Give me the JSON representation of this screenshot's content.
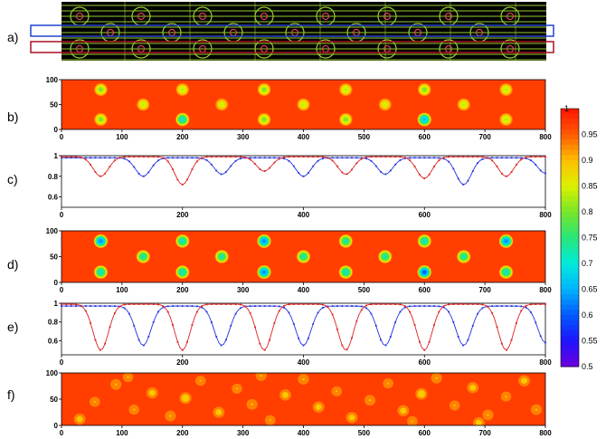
{
  "panel_labels": [
    "a)",
    "b)",
    "c)",
    "d)",
    "e)",
    "f)"
  ],
  "chart_data": [
    {
      "panel": "b)",
      "type": "heatmap",
      "xlim": [
        0,
        800
      ],
      "ylim": [
        0,
        100
      ],
      "xticks": [
        "0",
        "100",
        "200",
        "300",
        "400",
        "500",
        "600",
        "700",
        "800"
      ],
      "yticks": [
        "0",
        "50",
        "100"
      ],
      "background_value": 0.97,
      "spots": [
        {
          "x": 65,
          "y": 80,
          "v": 0.8
        },
        {
          "x": 200,
          "y": 80,
          "v": 0.82
        },
        {
          "x": 335,
          "y": 80,
          "v": 0.8
        },
        {
          "x": 470,
          "y": 80,
          "v": 0.82
        },
        {
          "x": 600,
          "y": 80,
          "v": 0.8
        },
        {
          "x": 735,
          "y": 80,
          "v": 0.82
        },
        {
          "x": 135,
          "y": 50,
          "v": 0.83
        },
        {
          "x": 265,
          "y": 50,
          "v": 0.84
        },
        {
          "x": 400,
          "y": 50,
          "v": 0.83
        },
        {
          "x": 535,
          "y": 50,
          "v": 0.84
        },
        {
          "x": 665,
          "y": 50,
          "v": 0.83
        },
        {
          "x": 65,
          "y": 20,
          "v": 0.8
        },
        {
          "x": 200,
          "y": 20,
          "v": 0.7
        },
        {
          "x": 335,
          "y": 20,
          "v": 0.8
        },
        {
          "x": 470,
          "y": 20,
          "v": 0.8
        },
        {
          "x": 600,
          "y": 20,
          "v": 0.65
        },
        {
          "x": 735,
          "y": 20,
          "v": 0.82
        }
      ]
    },
    {
      "panel": "c)",
      "type": "line",
      "xlim": [
        0,
        800
      ],
      "ylim": [
        0.5,
        1.0
      ],
      "xticks": [
        "0",
        "200",
        "400",
        "600",
        "800"
      ],
      "yticks": [
        "0.6",
        "0.8",
        "1"
      ],
      "series": [
        {
          "color": "#2233dd",
          "baseline": 0.98,
          "dips": [
            {
              "x": 135,
              "min": 0.8
            },
            {
              "x": 265,
              "min": 0.82
            },
            {
              "x": 400,
              "min": 0.8
            },
            {
              "x": 535,
              "min": 0.82
            },
            {
              "x": 665,
              "min": 0.72
            },
            {
              "x": 800,
              "min": 0.83
            }
          ]
        },
        {
          "color": "#dd2222",
          "baseline": 0.99,
          "dips": [
            {
              "x": 65,
              "min": 0.8
            },
            {
              "x": 200,
              "min": 0.72
            },
            {
              "x": 335,
              "min": 0.85
            },
            {
              "x": 470,
              "min": 0.82
            },
            {
              "x": 600,
              "min": 0.78
            },
            {
              "x": 735,
              "min": 0.8
            }
          ]
        }
      ]
    },
    {
      "panel": "d)",
      "type": "heatmap",
      "xlim": [
        0,
        800
      ],
      "ylim": [
        0,
        100
      ],
      "xticks": [
        "0",
        "100",
        "200",
        "300",
        "400",
        "500",
        "600",
        "700",
        "800"
      ],
      "yticks": [
        "0",
        "50",
        "100"
      ],
      "background_value": 0.97,
      "spots": [
        {
          "x": 65,
          "y": 80,
          "v": 0.62
        },
        {
          "x": 200,
          "y": 80,
          "v": 0.7
        },
        {
          "x": 335,
          "y": 80,
          "v": 0.62
        },
        {
          "x": 470,
          "y": 80,
          "v": 0.72
        },
        {
          "x": 600,
          "y": 80,
          "v": 0.7
        },
        {
          "x": 735,
          "y": 80,
          "v": 0.62
        },
        {
          "x": 135,
          "y": 50,
          "v": 0.72
        },
        {
          "x": 265,
          "y": 50,
          "v": 0.72
        },
        {
          "x": 400,
          "y": 50,
          "v": 0.72
        },
        {
          "x": 535,
          "y": 50,
          "v": 0.72
        },
        {
          "x": 665,
          "y": 50,
          "v": 0.72
        },
        {
          "x": 65,
          "y": 20,
          "v": 0.7
        },
        {
          "x": 200,
          "y": 20,
          "v": 0.7
        },
        {
          "x": 335,
          "y": 20,
          "v": 0.62
        },
        {
          "x": 470,
          "y": 20,
          "v": 0.7
        },
        {
          "x": 600,
          "y": 20,
          "v": 0.6
        },
        {
          "x": 735,
          "y": 20,
          "v": 0.7
        }
      ]
    },
    {
      "panel": "e)",
      "type": "line",
      "xlim": [
        0,
        800
      ],
      "ylim": [
        0.45,
        1.0
      ],
      "xticks": [
        "0",
        "200",
        "400",
        "600",
        "800"
      ],
      "yticks": [
        "0.6",
        "0.8",
        "1"
      ],
      "series": [
        {
          "color": "#2233dd",
          "baseline": 0.97,
          "dips": [
            {
              "x": 135,
              "min": 0.55
            },
            {
              "x": 265,
              "min": 0.55
            },
            {
              "x": 400,
              "min": 0.55
            },
            {
              "x": 535,
              "min": 0.55
            },
            {
              "x": 665,
              "min": 0.55
            },
            {
              "x": 800,
              "min": 0.58
            }
          ]
        },
        {
          "color": "#dd2222",
          "baseline": 0.99,
          "dips": [
            {
              "x": 65,
              "min": 0.5
            },
            {
              "x": 200,
              "min": 0.5
            },
            {
              "x": 335,
              "min": 0.5
            },
            {
              "x": 470,
              "min": 0.5
            },
            {
              "x": 600,
              "min": 0.5
            },
            {
              "x": 735,
              "min": 0.5
            }
          ]
        }
      ]
    },
    {
      "panel": "f)",
      "type": "heatmap",
      "xlim": [
        0,
        800
      ],
      "ylim": [
        0,
        100
      ],
      "xticks": [
        "0",
        "100",
        "200",
        "300",
        "400",
        "500",
        "600",
        "700",
        "800"
      ],
      "yticks": [
        "0",
        "50",
        "100"
      ],
      "background_value": 0.97,
      "spots": [
        {
          "x": 30,
          "y": 12,
          "v": 0.88
        },
        {
          "x": 55,
          "y": 45,
          "v": 0.9
        },
        {
          "x": 90,
          "y": 78,
          "v": 0.89
        },
        {
          "x": 120,
          "y": 30,
          "v": 0.9
        },
        {
          "x": 150,
          "y": 62,
          "v": 0.88
        },
        {
          "x": 180,
          "y": 18,
          "v": 0.89
        },
        {
          "x": 205,
          "y": 52,
          "v": 0.87
        },
        {
          "x": 230,
          "y": 85,
          "v": 0.9
        },
        {
          "x": 260,
          "y": 25,
          "v": 0.88
        },
        {
          "x": 290,
          "y": 70,
          "v": 0.9
        },
        {
          "x": 315,
          "y": 40,
          "v": 0.89
        },
        {
          "x": 345,
          "y": 10,
          "v": 0.9
        },
        {
          "x": 370,
          "y": 58,
          "v": 0.88
        },
        {
          "x": 400,
          "y": 88,
          "v": 0.89
        },
        {
          "x": 425,
          "y": 35,
          "v": 0.88
        },
        {
          "x": 455,
          "y": 65,
          "v": 0.9
        },
        {
          "x": 480,
          "y": 15,
          "v": 0.88
        },
        {
          "x": 510,
          "y": 48,
          "v": 0.89
        },
        {
          "x": 540,
          "y": 80,
          "v": 0.9
        },
        {
          "x": 565,
          "y": 28,
          "v": 0.88
        },
        {
          "x": 595,
          "y": 60,
          "v": 0.87
        },
        {
          "x": 620,
          "y": 90,
          "v": 0.89
        },
        {
          "x": 650,
          "y": 38,
          "v": 0.9
        },
        {
          "x": 680,
          "y": 72,
          "v": 0.88
        },
        {
          "x": 705,
          "y": 20,
          "v": 0.89
        },
        {
          "x": 735,
          "y": 55,
          "v": 0.9
        },
        {
          "x": 765,
          "y": 85,
          "v": 0.88
        },
        {
          "x": 785,
          "y": 30,
          "v": 0.89
        },
        {
          "x": 110,
          "y": 92,
          "v": 0.9
        },
        {
          "x": 330,
          "y": 95,
          "v": 0.89
        },
        {
          "x": 580,
          "y": 8,
          "v": 0.9
        },
        {
          "x": 690,
          "y": 5,
          "v": 0.88
        }
      ]
    }
  ],
  "colorbar": {
    "range": [
      0.5,
      1.0
    ],
    "ticks": [
      "0.95",
      "0.9",
      "0.85",
      "0.8",
      "0.75",
      "0.7",
      "0.65",
      "0.6",
      "0.55",
      "0.5"
    ],
    "top_tick": "1"
  },
  "colors": {
    "background_plot": "#ff1a00",
    "layout_bg": "#000000",
    "layout_trace": "#9acd32",
    "blue_box": "#2244cc",
    "red_box": "#aa1122"
  }
}
